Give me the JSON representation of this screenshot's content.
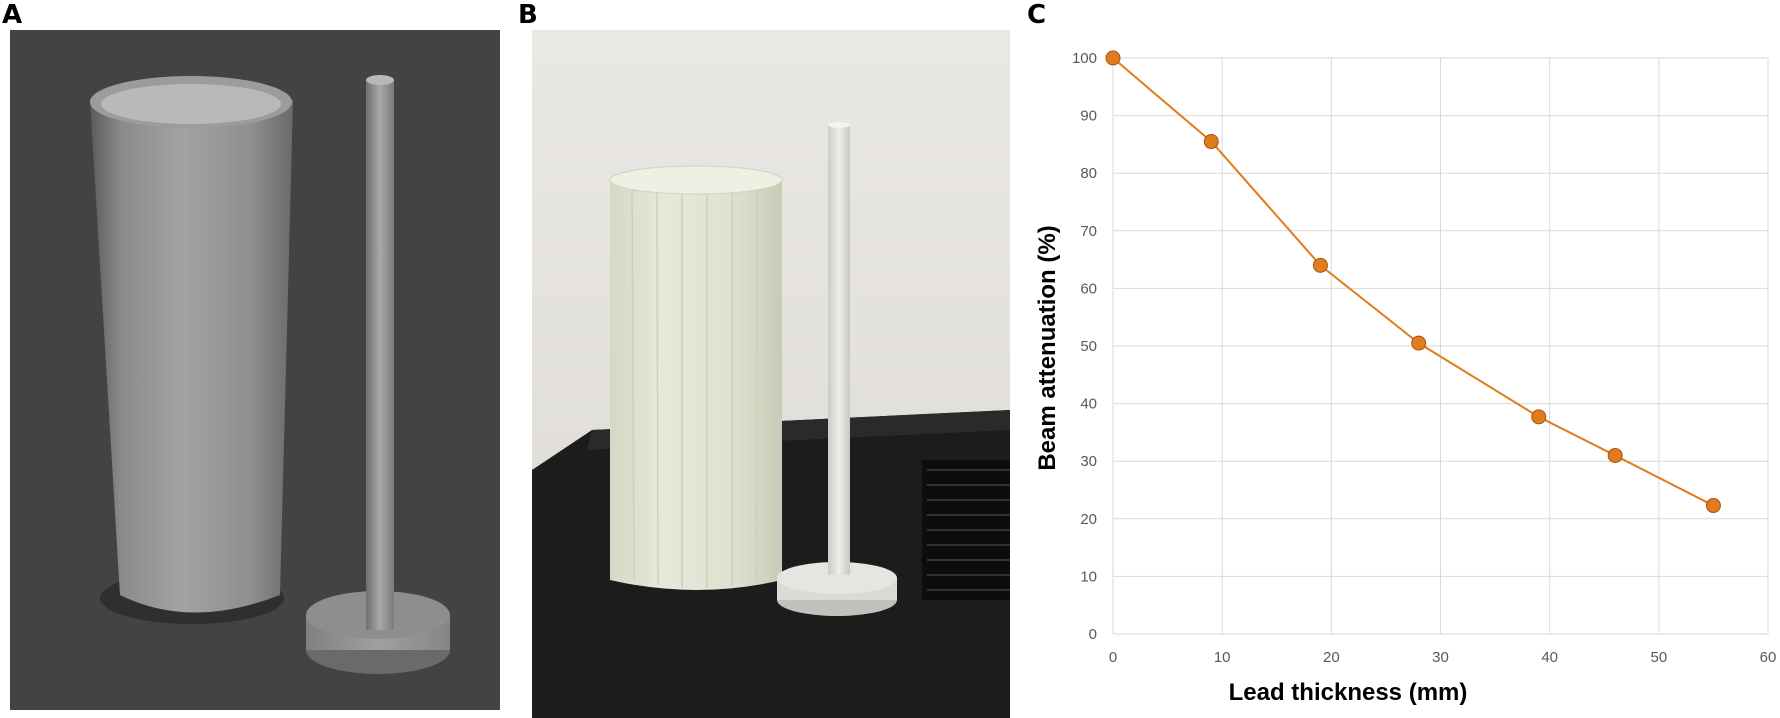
{
  "panels": {
    "a": "A",
    "b": "B",
    "c": "C"
  },
  "colors": {
    "series": "#E07B1E",
    "grid": "#d9d9d9",
    "tick_text": "#595959",
    "render_bg": "#434343"
  },
  "chart_data": {
    "type": "line",
    "xlabel": "Lead thickness (mm)",
    "ylabel": "Beam attenuation (%)",
    "xlim": [
      0,
      60
    ],
    "ylim": [
      0,
      100
    ],
    "xticks": [
      0,
      10,
      20,
      30,
      40,
      50,
      60
    ],
    "yticks": [
      0,
      10,
      20,
      30,
      40,
      50,
      60,
      70,
      80,
      90,
      100
    ],
    "grid": true,
    "legend": "none",
    "series": [
      {
        "x": [
          0,
          9,
          19,
          28,
          39,
          46,
          55
        ],
        "values": [
          100,
          85.5,
          64,
          50.5,
          37.7,
          31,
          22.3
        ]
      }
    ]
  }
}
